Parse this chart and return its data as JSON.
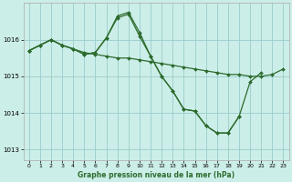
{
  "background_color": "#cceee8",
  "line_color": "#2d6b2d",
  "grid_color": "#99cccc",
  "xlabel": "Graphe pression niveau de la mer (hPa)",
  "yticks": [
    1013,
    1014,
    1015,
    1016
  ],
  "xticks": [
    0,
    1,
    2,
    3,
    4,
    5,
    6,
    7,
    8,
    9,
    10,
    11,
    12,
    13,
    14,
    15,
    16,
    17,
    18,
    19,
    20,
    21,
    22,
    23
  ],
  "ylim": [
    1012.7,
    1017.0
  ],
  "xlim": [
    -0.5,
    23.5
  ],
  "series": [
    {
      "x": [
        0,
        1,
        2,
        3,
        4,
        5,
        6,
        7,
        8,
        9,
        10,
        11,
        12,
        13,
        14,
        15,
        16,
        17,
        18,
        19,
        20,
        21,
        22,
        23
      ],
      "y": [
        1015.7,
        1015.85,
        1016.0,
        1015.85,
        1015.75,
        1015.65,
        1015.6,
        1015.55,
        1015.5,
        1015.5,
        1015.45,
        1015.4,
        1015.35,
        1015.3,
        1015.25,
        1015.2,
        1015.15,
        1015.1,
        1015.05,
        1015.05,
        1015.0,
        1015.0,
        1015.05,
        1015.2
      ]
    },
    {
      "x": [
        0,
        1,
        2,
        3,
        4,
        5,
        6,
        7,
        8,
        9,
        10,
        11,
        12,
        13,
        14,
        15,
        16,
        17,
        18,
        19,
        20,
        21
      ],
      "y": [
        1015.7,
        1015.85,
        1016.0,
        1015.85,
        1015.75,
        1015.6,
        1015.65,
        1016.05,
        1016.6,
        1016.7,
        1016.1,
        1015.55,
        1015.0,
        1014.6,
        1014.1,
        1014.05,
        1013.65,
        1013.45,
        1013.45,
        1013.9,
        1014.85,
        1015.1
      ]
    },
    {
      "x": [
        0,
        1,
        2,
        3,
        4,
        5,
        6,
        7,
        8,
        9,
        10,
        11,
        12,
        13,
        14,
        15,
        16,
        17,
        18,
        19
      ],
      "y": [
        1015.7,
        1015.85,
        1016.0,
        1015.85,
        1015.75,
        1015.6,
        1015.65,
        1016.05,
        1016.65,
        1016.75,
        1016.2,
        1015.55,
        1015.0,
        1014.6,
        1014.1,
        1014.05,
        1013.65,
        1013.45,
        1013.45,
        1013.9
      ]
    }
  ],
  "marker": "D",
  "markersize": 2.0,
  "linewidth": 0.9
}
